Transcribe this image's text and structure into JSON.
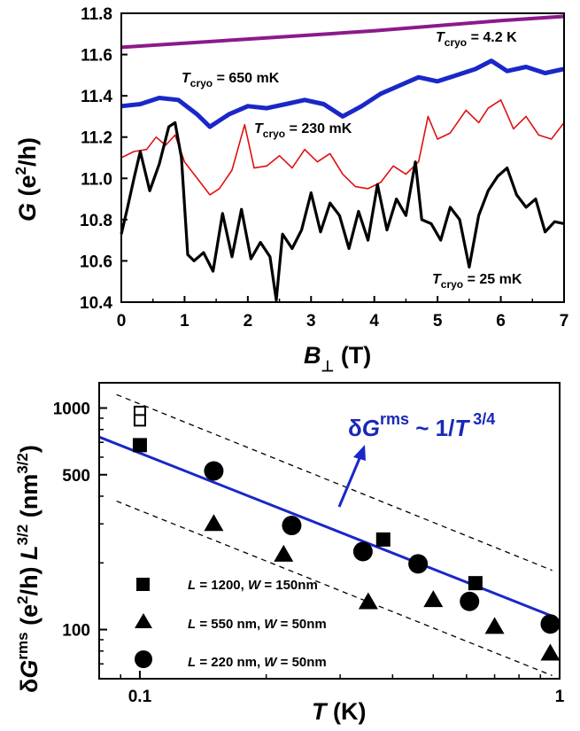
{
  "chart_data": [
    {
      "type": "line",
      "xlabel_main": "B",
      "xlabel_sub": "⊥",
      "xlabel_unit": " (T)",
      "ylabel_main": "G",
      "ylabel_unit": " (e",
      "ylabel_sup": "2",
      "ylabel_end": "/h)",
      "xlim": [
        0,
        7
      ],
      "ylim": [
        10.4,
        11.8
      ],
      "x_ticks": [
        "0",
        "1",
        "2",
        "3",
        "4",
        "5",
        "6",
        "7"
      ],
      "y_ticks": [
        "10.4",
        "10.6",
        "10.8",
        "11.0",
        "11.2",
        "11.4",
        "11.6",
        "11.8"
      ],
      "annotations": [
        {
          "prefix": "T",
          "sub": "cryo",
          "suffix": " = 4.2 K"
        },
        {
          "prefix": "T",
          "sub": "cryo",
          "suffix": " = 650 mK"
        },
        {
          "prefix": "T",
          "sub": "cryo",
          "suffix": " = 230 mK"
        },
        {
          "prefix": "T",
          "sub": "cryo",
          "suffix": " = 25 mK"
        }
      ],
      "series": [
        {
          "color": "#8b1a8b",
          "x": [
            0,
            1,
            2,
            3,
            4,
            5,
            6,
            7
          ],
          "y": [
            11.635,
            11.655,
            11.675,
            11.695,
            11.715,
            11.74,
            11.765,
            11.785
          ]
        },
        {
          "color": "#1a27c8",
          "x": [
            0,
            0.3,
            0.6,
            0.9,
            1.2,
            1.4,
            1.7,
            2.0,
            2.3,
            2.6,
            2.9,
            3.2,
            3.5,
            3.8,
            4.1,
            4.4,
            4.7,
            5.0,
            5.3,
            5.6,
            5.85,
            6.1,
            6.4,
            6.7,
            7.0
          ],
          "y": [
            11.35,
            11.36,
            11.39,
            11.38,
            11.31,
            11.25,
            11.31,
            11.35,
            11.34,
            11.36,
            11.38,
            11.36,
            11.3,
            11.35,
            11.41,
            11.45,
            11.49,
            11.47,
            11.5,
            11.53,
            11.57,
            11.52,
            11.54,
            11.51,
            11.53
          ]
        },
        {
          "color": "#e01010",
          "x": [
            0,
            0.2,
            0.4,
            0.55,
            0.7,
            0.85,
            1.0,
            1.2,
            1.4,
            1.55,
            1.75,
            1.95,
            2.1,
            2.3,
            2.5,
            2.7,
            2.9,
            3.1,
            3.3,
            3.5,
            3.7,
            3.9,
            4.1,
            4.3,
            4.5,
            4.7,
            4.85,
            5.0,
            5.2,
            5.45,
            5.65,
            5.8,
            6.0,
            6.2,
            6.4,
            6.6,
            6.8,
            7.0
          ],
          "y": [
            11.1,
            11.13,
            11.14,
            11.2,
            11.16,
            11.21,
            11.08,
            11.0,
            10.92,
            10.95,
            11.04,
            11.26,
            11.05,
            11.06,
            11.11,
            11.05,
            11.14,
            11.08,
            11.12,
            11.02,
            10.96,
            10.95,
            10.98,
            11.06,
            11.02,
            11.08,
            11.3,
            11.19,
            11.22,
            11.33,
            11.27,
            11.34,
            11.38,
            11.24,
            11.3,
            11.21,
            11.19,
            11.27
          ]
        },
        {
          "color": "#000000",
          "x": [
            0,
            0.1,
            0.2,
            0.3,
            0.45,
            0.6,
            0.75,
            0.85,
            0.95,
            1.05,
            1.15,
            1.3,
            1.45,
            1.6,
            1.75,
            1.9,
            2.05,
            2.2,
            2.35,
            2.45,
            2.55,
            2.7,
            2.85,
            3.0,
            3.15,
            3.3,
            3.45,
            3.6,
            3.75,
            3.9,
            4.05,
            4.2,
            4.35,
            4.5,
            4.65,
            4.75,
            4.9,
            5.05,
            5.2,
            5.35,
            5.5,
            5.65,
            5.8,
            5.95,
            6.1,
            6.25,
            6.4,
            6.55,
            6.7,
            6.85,
            7.0
          ],
          "y": [
            10.73,
            10.86,
            11.0,
            11.13,
            10.94,
            11.07,
            11.25,
            11.27,
            11.1,
            10.63,
            10.6,
            10.64,
            10.55,
            10.83,
            10.62,
            10.85,
            10.61,
            10.69,
            10.62,
            10.41,
            10.73,
            10.66,
            10.75,
            10.93,
            10.74,
            10.88,
            10.82,
            10.66,
            10.84,
            10.7,
            10.97,
            10.75,
            10.9,
            10.82,
            11.08,
            10.8,
            10.78,
            10.7,
            10.86,
            10.8,
            10.57,
            10.82,
            10.94,
            11.01,
            11.05,
            10.92,
            10.86,
            10.9,
            10.74,
            10.79,
            10.78
          ]
        }
      ]
    },
    {
      "type": "scatter",
      "xscale": "log",
      "yscale": "log",
      "xlim": [
        0.08,
        1.0
      ],
      "ylim": [
        60,
        1300
      ],
      "x_ticks": [
        "0.1",
        "1"
      ],
      "y_ticks": [
        "100",
        "500",
        "1000"
      ],
      "xlabel_main": "T",
      "xlabel_unit": " (K)",
      "ylabel_delta": "δ",
      "ylabel_g": "G",
      "ylabel_sup_rms": "rms",
      "ylabel_mid": " (e",
      "ylabel_sup_2": "2",
      "ylabel_mid2": "/h) ",
      "ylabel_l": "L",
      "ylabel_sup_32": "3/2",
      "ylabel_unit": " (nm",
      "ylabel_unit_sup": "3/2",
      "ylabel_close": ")",
      "annotation": {
        "delta": "δ",
        "g": "G",
        "sup": "rms",
        "mid": " ~ 1/",
        "t": "T",
        "exp": " 3/4"
      },
      "fit_line": {
        "color": "#1a27c8",
        "x": [
          0.08,
          0.96
        ],
        "y": [
          740,
          115
        ]
      },
      "dashed_lines": [
        {
          "x": [
            0.088,
            0.96
          ],
          "y": [
            1150,
            185
          ]
        },
        {
          "x": [
            0.088,
            0.96
          ],
          "y": [
            380,
            62
          ]
        }
      ],
      "series": [
        {
          "marker": "square",
          "label_parts": {
            "l": "L",
            "l_val": " = 1200, ",
            "w": "W",
            "w_val": " = 150nm"
          },
          "x": [
            0.1,
            0.38,
            0.63
          ],
          "y": [
            680,
            255,
            162
          ]
        },
        {
          "marker": "square-open",
          "x": [
            0.1,
            0.1
          ],
          "y": [
            960,
            880
          ]
        },
        {
          "marker": "triangle",
          "label_parts": {
            "l": "L",
            "l_val": " = 550 nm, ",
            "w": "W",
            "w_val": " = 50nm"
          },
          "x": [
            0.15,
            0.22,
            0.35,
            0.5,
            0.7,
            0.95
          ],
          "y": [
            300,
            218,
            133,
            136,
            103,
            78
          ]
        },
        {
          "marker": "circle",
          "label_parts": {
            "l": "L",
            "l_val": " = 220 nm, ",
            "w": "W",
            "w_val": " = 50nm"
          },
          "x": [
            0.15,
            0.23,
            0.34,
            0.46,
            0.61,
            0.95
          ],
          "y": [
            520,
            295,
            225,
            198,
            134,
            106
          ]
        }
      ]
    }
  ]
}
